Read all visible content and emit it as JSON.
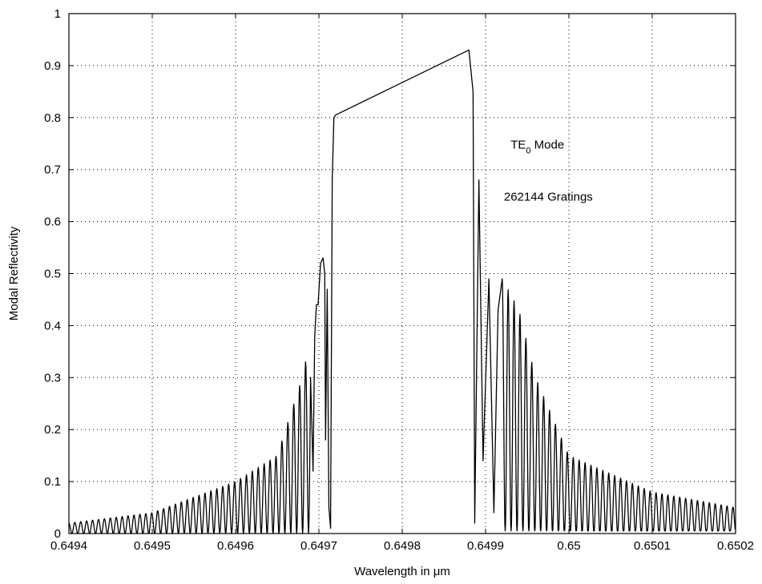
{
  "chart_data": {
    "type": "line",
    "title": "",
    "xlabel": "Wavelength in μm",
    "ylabel": "Modal Reflectivity",
    "xlim": [
      0.6494,
      0.6502
    ],
    "ylim": [
      0,
      1
    ],
    "xticks": [
      0.6494,
      0.6495,
      0.6496,
      0.6497,
      0.6498,
      0.6499,
      0.65,
      0.6501,
      0.6502
    ],
    "xtick_labels": [
      "0.6494",
      "0.6495",
      "0.6496",
      "0.6497",
      "0.6498",
      "0.6499",
      "0.65",
      "0.6501",
      "0.6502"
    ],
    "yticks": [
      0,
      0.1,
      0.2,
      0.3,
      0.4,
      0.5,
      0.6,
      0.7,
      0.8,
      0.9,
      1
    ],
    "ytick_labels": [
      "0",
      "0.1",
      "0.2",
      "0.3",
      "0.4",
      "0.5",
      "0.6",
      "0.7",
      "0.8",
      "0.9",
      "1"
    ],
    "grid": true,
    "grid_style": "dotted",
    "line_color": "#000000",
    "annotations": {
      "mode_main": "TE",
      "mode_sub": "0",
      "mode_suffix": " Mode",
      "gratings": "262144 Gratings"
    },
    "series": [
      {
        "x": [
          0.6494,
          0.6497,
          0.64971,
          0.649713,
          0.649716,
          0.649718,
          0.64972,
          0.64985,
          0.64988,
          0.649885,
          0.64989,
          0.6502
        ],
        "y": [
          0.02,
          0.53,
          0.45,
          0.01,
          0.68,
          0.8,
          0.805,
          0.92,
          0.93,
          0.85,
          0.01,
          0.05
        ],
        "description_of_envelope": [
          [
            0.6494,
            0.02
          ],
          [
            0.6495,
            0.04
          ],
          [
            0.6496,
            0.1
          ],
          [
            0.64965,
            0.15
          ],
          [
            0.64968,
            0.3
          ],
          [
            0.6497,
            0.45
          ],
          [
            0.649705,
            0.53
          ],
          [
            0.64972,
            0.8
          ],
          [
            0.64988,
            0.93
          ],
          [
            0.64989,
            0.01
          ],
          [
            0.6499,
            0.68
          ],
          [
            0.64992,
            0.49
          ],
          [
            0.64994,
            0.43
          ],
          [
            0.64996,
            0.3
          ],
          [
            0.65,
            0.15
          ],
          [
            0.6501,
            0.08
          ],
          [
            0.6502,
            0.05
          ]
        ]
      }
    ]
  }
}
